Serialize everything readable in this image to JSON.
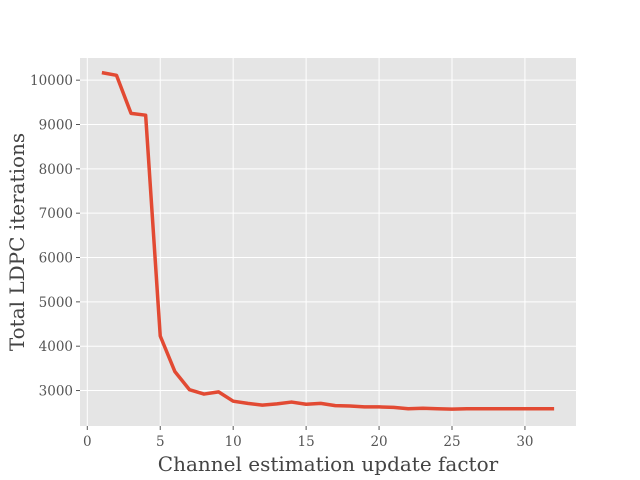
{
  "chart_data": {
    "type": "line",
    "title": "",
    "xlabel": "Channel estimation update factor",
    "ylabel": "Total LDPC iterations",
    "xlim": [
      -0.5,
      33.5
    ],
    "ylim": [
      2200,
      10500
    ],
    "xticks": [
      0,
      5,
      10,
      15,
      20,
      25,
      30
    ],
    "yticks": [
      3000,
      4000,
      5000,
      6000,
      7000,
      8000,
      9000,
      10000
    ],
    "grid": true,
    "colors": {
      "background": "#E5E5E5",
      "grid": "#FFFFFF",
      "line": "#E24A33",
      "tick": "#555555"
    },
    "series": [
      {
        "name": "Total LDPC iterations",
        "x": [
          1,
          2,
          3,
          4,
          5,
          6,
          7,
          8,
          9,
          10,
          11,
          12,
          13,
          14,
          15,
          16,
          17,
          18,
          19,
          20,
          21,
          22,
          23,
          24,
          25,
          26,
          27,
          28,
          29,
          30,
          31,
          32
        ],
        "values": [
          10170,
          10110,
          9250,
          9210,
          4230,
          3430,
          3020,
          2920,
          2970,
          2760,
          2710,
          2670,
          2700,
          2740,
          2690,
          2710,
          2660,
          2650,
          2630,
          2630,
          2620,
          2590,
          2600,
          2590,
          2580,
          2590,
          2590,
          2590,
          2590,
          2590,
          2590,
          2590
        ]
      }
    ]
  }
}
